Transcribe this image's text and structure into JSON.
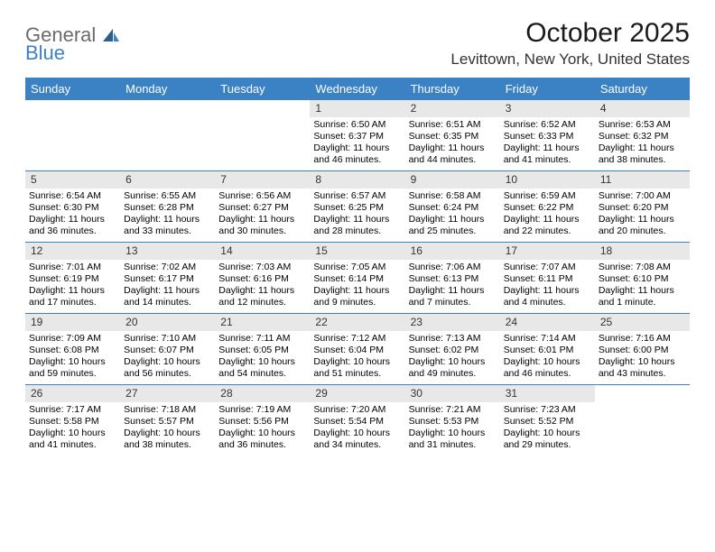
{
  "logo": {
    "part1": "General",
    "part2": "Blue"
  },
  "title": "October 2025",
  "location": "Levittown, New York, United States",
  "colors": {
    "header_bg": "#3b82c4",
    "header_text": "#ffffff",
    "daynum_bg": "#e8e8e8",
    "body_text": "#000000",
    "page_bg": "#ffffff",
    "logo_gray": "#6b6b6b",
    "logo_blue": "#3b82c4",
    "week_border": "#3b82c4"
  },
  "dayNames": [
    "Sunday",
    "Monday",
    "Tuesday",
    "Wednesday",
    "Thursday",
    "Friday",
    "Saturday"
  ],
  "weeks": [
    [
      {
        "empty": true
      },
      {
        "empty": true
      },
      {
        "empty": true
      },
      {
        "day": "1",
        "sunrise": "Sunrise: 6:50 AM",
        "sunset": "Sunset: 6:37 PM",
        "daylight": "Daylight: 11 hours and 46 minutes."
      },
      {
        "day": "2",
        "sunrise": "Sunrise: 6:51 AM",
        "sunset": "Sunset: 6:35 PM",
        "daylight": "Daylight: 11 hours and 44 minutes."
      },
      {
        "day": "3",
        "sunrise": "Sunrise: 6:52 AM",
        "sunset": "Sunset: 6:33 PM",
        "daylight": "Daylight: 11 hours and 41 minutes."
      },
      {
        "day": "4",
        "sunrise": "Sunrise: 6:53 AM",
        "sunset": "Sunset: 6:32 PM",
        "daylight": "Daylight: 11 hours and 38 minutes."
      }
    ],
    [
      {
        "day": "5",
        "sunrise": "Sunrise: 6:54 AM",
        "sunset": "Sunset: 6:30 PM",
        "daylight": "Daylight: 11 hours and 36 minutes."
      },
      {
        "day": "6",
        "sunrise": "Sunrise: 6:55 AM",
        "sunset": "Sunset: 6:28 PM",
        "daylight": "Daylight: 11 hours and 33 minutes."
      },
      {
        "day": "7",
        "sunrise": "Sunrise: 6:56 AM",
        "sunset": "Sunset: 6:27 PM",
        "daylight": "Daylight: 11 hours and 30 minutes."
      },
      {
        "day": "8",
        "sunrise": "Sunrise: 6:57 AM",
        "sunset": "Sunset: 6:25 PM",
        "daylight": "Daylight: 11 hours and 28 minutes."
      },
      {
        "day": "9",
        "sunrise": "Sunrise: 6:58 AM",
        "sunset": "Sunset: 6:24 PM",
        "daylight": "Daylight: 11 hours and 25 minutes."
      },
      {
        "day": "10",
        "sunrise": "Sunrise: 6:59 AM",
        "sunset": "Sunset: 6:22 PM",
        "daylight": "Daylight: 11 hours and 22 minutes."
      },
      {
        "day": "11",
        "sunrise": "Sunrise: 7:00 AM",
        "sunset": "Sunset: 6:20 PM",
        "daylight": "Daylight: 11 hours and 20 minutes."
      }
    ],
    [
      {
        "day": "12",
        "sunrise": "Sunrise: 7:01 AM",
        "sunset": "Sunset: 6:19 PM",
        "daylight": "Daylight: 11 hours and 17 minutes."
      },
      {
        "day": "13",
        "sunrise": "Sunrise: 7:02 AM",
        "sunset": "Sunset: 6:17 PM",
        "daylight": "Daylight: 11 hours and 14 minutes."
      },
      {
        "day": "14",
        "sunrise": "Sunrise: 7:03 AM",
        "sunset": "Sunset: 6:16 PM",
        "daylight": "Daylight: 11 hours and 12 minutes."
      },
      {
        "day": "15",
        "sunrise": "Sunrise: 7:05 AM",
        "sunset": "Sunset: 6:14 PM",
        "daylight": "Daylight: 11 hours and 9 minutes."
      },
      {
        "day": "16",
        "sunrise": "Sunrise: 7:06 AM",
        "sunset": "Sunset: 6:13 PM",
        "daylight": "Daylight: 11 hours and 7 minutes."
      },
      {
        "day": "17",
        "sunrise": "Sunrise: 7:07 AM",
        "sunset": "Sunset: 6:11 PM",
        "daylight": "Daylight: 11 hours and 4 minutes."
      },
      {
        "day": "18",
        "sunrise": "Sunrise: 7:08 AM",
        "sunset": "Sunset: 6:10 PM",
        "daylight": "Daylight: 11 hours and 1 minute."
      }
    ],
    [
      {
        "day": "19",
        "sunrise": "Sunrise: 7:09 AM",
        "sunset": "Sunset: 6:08 PM",
        "daylight": "Daylight: 10 hours and 59 minutes."
      },
      {
        "day": "20",
        "sunrise": "Sunrise: 7:10 AM",
        "sunset": "Sunset: 6:07 PM",
        "daylight": "Daylight: 10 hours and 56 minutes."
      },
      {
        "day": "21",
        "sunrise": "Sunrise: 7:11 AM",
        "sunset": "Sunset: 6:05 PM",
        "daylight": "Daylight: 10 hours and 54 minutes."
      },
      {
        "day": "22",
        "sunrise": "Sunrise: 7:12 AM",
        "sunset": "Sunset: 6:04 PM",
        "daylight": "Daylight: 10 hours and 51 minutes."
      },
      {
        "day": "23",
        "sunrise": "Sunrise: 7:13 AM",
        "sunset": "Sunset: 6:02 PM",
        "daylight": "Daylight: 10 hours and 49 minutes."
      },
      {
        "day": "24",
        "sunrise": "Sunrise: 7:14 AM",
        "sunset": "Sunset: 6:01 PM",
        "daylight": "Daylight: 10 hours and 46 minutes."
      },
      {
        "day": "25",
        "sunrise": "Sunrise: 7:16 AM",
        "sunset": "Sunset: 6:00 PM",
        "daylight": "Daylight: 10 hours and 43 minutes."
      }
    ],
    [
      {
        "day": "26",
        "sunrise": "Sunrise: 7:17 AM",
        "sunset": "Sunset: 5:58 PM",
        "daylight": "Daylight: 10 hours and 41 minutes."
      },
      {
        "day": "27",
        "sunrise": "Sunrise: 7:18 AM",
        "sunset": "Sunset: 5:57 PM",
        "daylight": "Daylight: 10 hours and 38 minutes."
      },
      {
        "day": "28",
        "sunrise": "Sunrise: 7:19 AM",
        "sunset": "Sunset: 5:56 PM",
        "daylight": "Daylight: 10 hours and 36 minutes."
      },
      {
        "day": "29",
        "sunrise": "Sunrise: 7:20 AM",
        "sunset": "Sunset: 5:54 PM",
        "daylight": "Daylight: 10 hours and 34 minutes."
      },
      {
        "day": "30",
        "sunrise": "Sunrise: 7:21 AM",
        "sunset": "Sunset: 5:53 PM",
        "daylight": "Daylight: 10 hours and 31 minutes."
      },
      {
        "day": "31",
        "sunrise": "Sunrise: 7:23 AM",
        "sunset": "Sunset: 5:52 PM",
        "daylight": "Daylight: 10 hours and 29 minutes."
      },
      {
        "empty": true
      }
    ]
  ]
}
